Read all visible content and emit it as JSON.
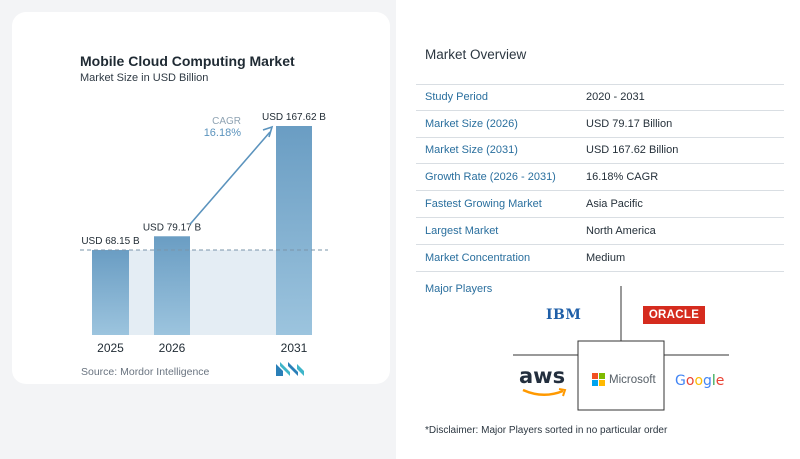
{
  "chart_data": {
    "type": "bar",
    "title": "Mobile Cloud Computing Market",
    "subtitle": "Market Size in USD Billion",
    "categories": [
      "2025",
      "2026",
      "2031"
    ],
    "values": [
      68.15,
      79.17,
      167.62
    ],
    "data_labels": [
      "USD 68.15 B",
      "USD 79.17 B",
      "USD 167.62 B"
    ],
    "cagr_label": "CAGR",
    "cagr_value": "16.18%",
    "ylim": [
      0,
      180
    ],
    "grid": false,
    "colors": {
      "bar": "#6a9dc3",
      "bar_light": "#9cc4de",
      "band": "#e4edf4",
      "arrow": "#5b93bd"
    }
  },
  "source": "Source:  Mordor Intelligence",
  "overview": {
    "title": "Market Overview",
    "rows": [
      {
        "label": "Study Period",
        "value": "2020 - 2031"
      },
      {
        "label": "Market Size (2026)",
        "value": "USD 79.17 Billion"
      },
      {
        "label": "Market Size (2031)",
        "value": "USD 167.62 Billion"
      },
      {
        "label": "Growth Rate (2026 - 2031)",
        "value": "16.18% CAGR"
      },
      {
        "label": "Fastest Growing Market",
        "value": "Asia Pacific"
      },
      {
        "label": "Largest Market",
        "value": "North America"
      },
      {
        "label": "Market Concentration",
        "value": "Medium"
      }
    ]
  },
  "players": {
    "title": "Major Players",
    "logos": [
      "IBM",
      "ORACLE",
      "aws",
      "Microsoft",
      "Google"
    ]
  },
  "disclaimer": "*Disclaimer: Major Players sorted in no particular order"
}
